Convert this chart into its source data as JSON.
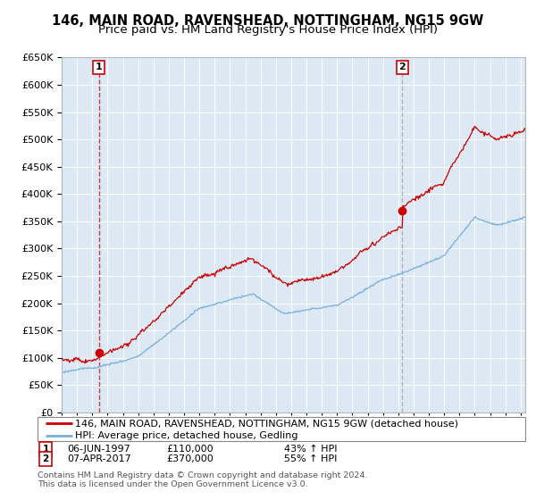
{
  "title": "146, MAIN ROAD, RAVENSHEAD, NOTTINGHAM, NG15 9GW",
  "subtitle": "Price paid vs. HM Land Registry's House Price Index (HPI)",
  "legend_line1": "146, MAIN ROAD, RAVENSHEAD, NOTTINGHAM, NG15 9GW (detached house)",
  "legend_line2": "HPI: Average price, detached house, Gedling",
  "sale1_date": "06-JUN-1997",
  "sale1_year": 1997.43,
  "sale1_price": 110000,
  "sale1_pct": "43% ↑ HPI",
  "sale2_date": "07-APR-2017",
  "sale2_year": 2017.27,
  "sale2_price": 370000,
  "sale2_pct": "55% ↑ HPI",
  "footer1": "Contains HM Land Registry data © Crown copyright and database right 2024.",
  "footer2": "This data is licensed under the Open Government Licence v3.0.",
  "ylim_max": 650000,
  "xlim_start": 1995.0,
  "xlim_end": 2025.3,
  "background_color": "#dce9f5",
  "red_color": "#cc0000",
  "blue_color": "#7ab0d8",
  "vline1_color": "#cc0000",
  "vline2_color": "#aaaaaa",
  "title_fontsize": 10.5,
  "subtitle_fontsize": 9.5,
  "tick_fontsize": 7.5,
  "ytick_fontsize": 8
}
